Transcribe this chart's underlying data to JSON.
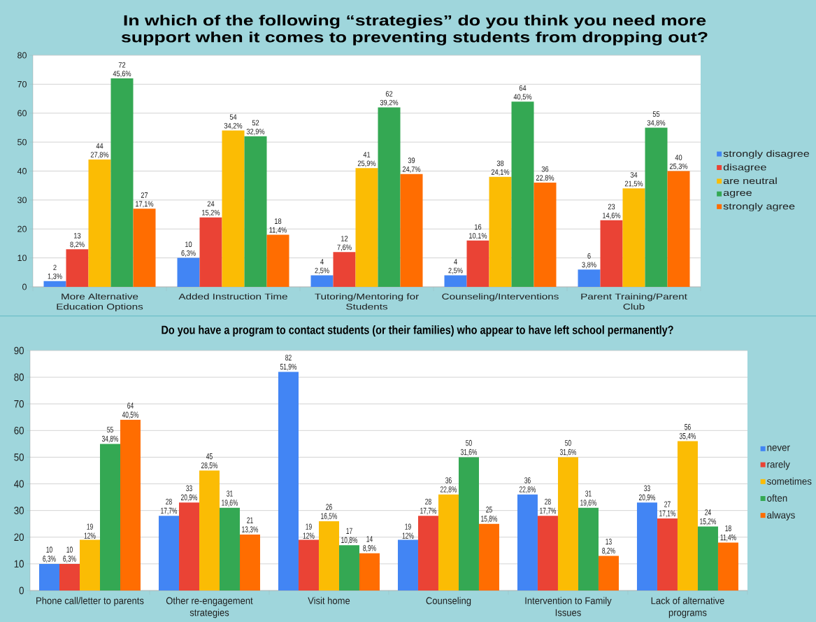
{
  "chart_data": [
    {
      "type": "bar",
      "title": "In which of the following “strategies” do you think you need more support when it comes to preventing students from dropping out?",
      "categories": [
        "More Alternative Education Options",
        "Added Instruction Time",
        "Tutoring/Mentoring for Students",
        "Counseling/Interventions",
        "Parent Training/Parent Club"
      ],
      "series": [
        {
          "name": "strongly disagree",
          "color": "#4285f4",
          "values": [
            2,
            10,
            4,
            4,
            6
          ],
          "value_labels": [
            "2 1,3%",
            "10 6,3%",
            "4 2,5%",
            "4 2,5%",
            "6 3,8%"
          ]
        },
        {
          "name": "disagree",
          "color": "#ea4335",
          "values": [
            13,
            24,
            12,
            16,
            23
          ],
          "value_labels": [
            "13 8,2%",
            "24 15,2%",
            "12 7,6%",
            "16 10,1%",
            "23 14,6%"
          ]
        },
        {
          "name": "are neutral",
          "color": "#fbbc04",
          "values": [
            44,
            54,
            41,
            38,
            34
          ],
          "value_labels": [
            "44 27,8%",
            "54 34,2%",
            "41 25,9%",
            "38 24,1%",
            "34 21,5%"
          ]
        },
        {
          "name": "agree",
          "color": "#34a853",
          "values": [
            72,
            52,
            62,
            64,
            55
          ],
          "value_labels": [
            "72 45,6%",
            "52 32,9%",
            "62 39,2%",
            "64 40,5%",
            "55 34,8%"
          ]
        },
        {
          "name": "strongly agree",
          "color": "#ff6d01",
          "values": [
            27,
            18,
            39,
            36,
            40
          ],
          "value_labels": [
            "27 17,1%",
            "18 11,4%",
            "39 24,7%",
            "36 22,8%",
            "40 25,3%"
          ]
        }
      ],
      "ylim": [
        0,
        80
      ],
      "yticks": [
        0,
        10,
        20,
        30,
        40,
        50,
        60,
        70,
        80
      ],
      "grid": "y",
      "legend": "right"
    },
    {
      "type": "bar",
      "title": "Do you have a program to contact students (or their families) who appear to have left school permanently?",
      "categories": [
        "Phone call/letter to parents",
        "Other re-engagement strategies",
        "Visit home",
        "Counseling",
        "Intervention to Family Issues",
        "Lack of alternative programs"
      ],
      "series": [
        {
          "name": "never",
          "color": "#4285f4",
          "values": [
            10,
            28,
            82,
            19,
            36,
            33
          ],
          "value_labels": [
            "10 6,3%",
            "28 17,7%",
            "82 51,9%",
            "19 12%",
            "36 22,8%",
            "33 20,9%"
          ]
        },
        {
          "name": "rarely",
          "color": "#ea4335",
          "values": [
            10,
            33,
            19,
            28,
            28,
            27
          ],
          "value_labels": [
            "10 6,3%",
            "33 20,9%",
            "19 12%",
            "28 17,7%",
            "28 17,7%",
            "27 17,1%"
          ]
        },
        {
          "name": "sometimes",
          "color": "#fbbc04",
          "values": [
            19,
            45,
            26,
            36,
            50,
            56
          ],
          "value_labels": [
            "19 12%",
            "45 28,5%",
            "26 16,5%",
            "36 22,8%",
            "50 31,6%",
            "56 35,4%"
          ]
        },
        {
          "name": "often",
          "color": "#34a853",
          "values": [
            55,
            31,
            17,
            50,
            31,
            24
          ],
          "value_labels": [
            "55 34,8%",
            "31 19,6%",
            "17 10,8%",
            "50 31,6%",
            "31 19,6%",
            "24 15,2%"
          ]
        },
        {
          "name": "always",
          "color": "#ff6d01",
          "values": [
            64,
            21,
            14,
            25,
            13,
            18
          ],
          "value_labels": [
            "64 40,5%",
            "21 13,3%",
            "14 8,9%",
            "25 15,8%",
            "13 8,2%",
            "18 11,4%"
          ]
        }
      ],
      "ylim": [
        0,
        90
      ],
      "yticks": [
        0,
        10,
        20,
        30,
        40,
        50,
        60,
        70,
        80,
        90
      ],
      "grid": "y",
      "legend": "right"
    }
  ]
}
